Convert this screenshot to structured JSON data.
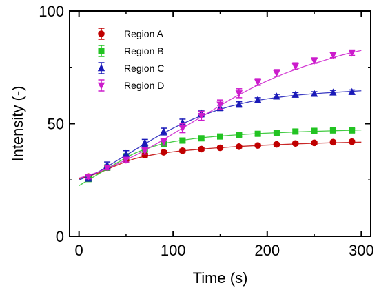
{
  "chart_data": {
    "type": "scatter",
    "xlabel": "Time (s)",
    "ylabel": "Intensity (-)",
    "xlim": [
      -10,
      310
    ],
    "ylim": [
      0,
      100
    ],
    "xticks": [
      "0",
      "100",
      "200",
      "300"
    ],
    "yticks": [
      "0",
      "50",
      "100"
    ],
    "legend_position": "top-left",
    "grid": false,
    "series": [
      {
        "name": "Region A",
        "color": "#c00000",
        "marker": "circle",
        "x": [
          10,
          30,
          50,
          70,
          90,
          110,
          130,
          150,
          170,
          190,
          210,
          230,
          250,
          270,
          290
        ],
        "y": [
          26.5,
          30.5,
          34.0,
          36.0,
          37.3,
          38.0,
          38.7,
          39.3,
          39.8,
          40.3,
          40.8,
          41.2,
          41.5,
          41.8,
          42.0
        ],
        "err": [
          1.0,
          1.0,
          1.0,
          0.8,
          0.7,
          0.7,
          0.6,
          0.6,
          0.6,
          0.6,
          0.6,
          0.6,
          0.6,
          0.6,
          0.6
        ],
        "fit": [
          [
            0,
            25.5
          ],
          [
            20,
            28.0
          ],
          [
            40,
            31.5
          ],
          [
            60,
            34.5
          ],
          [
            80,
            36.3
          ],
          [
            100,
            37.5
          ],
          [
            130,
            38.7
          ],
          [
            160,
            39.6
          ],
          [
            200,
            40.5
          ],
          [
            250,
            41.3
          ],
          [
            300,
            41.8
          ]
        ]
      },
      {
        "name": "Region B",
        "color": "#22c322",
        "marker": "square",
        "x": [
          10,
          30,
          50,
          70,
          90,
          110,
          130,
          150,
          170,
          190,
          210,
          230,
          250,
          270,
          290
        ],
        "y": [
          25.5,
          30.5,
          35.5,
          38.5,
          41.0,
          42.5,
          43.5,
          44.3,
          45.0,
          45.5,
          46.0,
          46.5,
          46.8,
          47.0,
          47.0
        ],
        "err": [
          1.2,
          1.2,
          1.0,
          1.0,
          1.0,
          0.9,
          0.8,
          0.8,
          0.8,
          0.8,
          0.8,
          0.8,
          0.8,
          0.8,
          0.8
        ],
        "fit": [
          [
            0,
            22.5
          ],
          [
            20,
            27.5
          ],
          [
            40,
            32.5
          ],
          [
            60,
            37.0
          ],
          [
            80,
            40.0
          ],
          [
            100,
            42.0
          ],
          [
            130,
            43.7
          ],
          [
            160,
            44.8
          ],
          [
            200,
            45.8
          ],
          [
            250,
            46.6
          ],
          [
            300,
            47.2
          ]
        ]
      },
      {
        "name": "Region C",
        "color": "#1a1ab8",
        "marker": "triangle-up",
        "x": [
          10,
          30,
          50,
          70,
          90,
          110,
          130,
          150,
          170,
          190,
          210,
          230,
          250,
          270,
          290
        ],
        "y": [
          26.0,
          31.5,
          36.5,
          41.5,
          46.5,
          50.5,
          54.5,
          57.0,
          58.5,
          60.5,
          62.0,
          62.8,
          63.2,
          63.8,
          64.0
        ],
        "err": [
          1.5,
          1.5,
          1.5,
          1.5,
          1.5,
          1.5,
          1.5,
          1.2,
          1.2,
          1.0,
          1.0,
          1.0,
          1.0,
          1.0,
          1.0
        ],
        "fit": [
          [
            0,
            25.0
          ],
          [
            20,
            28.5
          ],
          [
            40,
            33.5
          ],
          [
            60,
            38.5
          ],
          [
            80,
            43.5
          ],
          [
            100,
            48.0
          ],
          [
            120,
            51.8
          ],
          [
            140,
            55.0
          ],
          [
            160,
            57.6
          ],
          [
            180,
            59.6
          ],
          [
            200,
            61.0
          ],
          [
            230,
            62.6
          ],
          [
            260,
            63.6
          ],
          [
            300,
            64.6
          ]
        ]
      },
      {
        "name": "Region D",
        "color": "#cc1ccc",
        "marker": "triangle-down",
        "x": [
          10,
          30,
          50,
          70,
          90,
          110,
          130,
          150,
          170,
          190,
          210,
          230,
          250,
          270,
          290
        ],
        "y": [
          26.5,
          30.5,
          34.0,
          38.0,
          42.0,
          48.0,
          53.5,
          58.5,
          63.5,
          68.5,
          72.5,
          75.5,
          78.0,
          80.5,
          81.5
        ],
        "err": [
          1.0,
          1.0,
          1.0,
          1.5,
          1.5,
          2.0,
          2.0,
          2.0,
          2.0,
          1.5,
          1.5,
          1.5,
          1.2,
          1.2,
          1.2
        ],
        "fit": [
          [
            0,
            25.8
          ],
          [
            20,
            28.5
          ],
          [
            40,
            32.0
          ],
          [
            60,
            36.0
          ],
          [
            80,
            40.5
          ],
          [
            100,
            45.5
          ],
          [
            120,
            50.5
          ],
          [
            140,
            55.5
          ],
          [
            160,
            60.5
          ],
          [
            180,
            65.0
          ],
          [
            200,
            69.0
          ],
          [
            220,
            72.5
          ],
          [
            240,
            75.5
          ],
          [
            260,
            78.0
          ],
          [
            280,
            80.5
          ],
          [
            300,
            82.5
          ]
        ]
      }
    ]
  }
}
